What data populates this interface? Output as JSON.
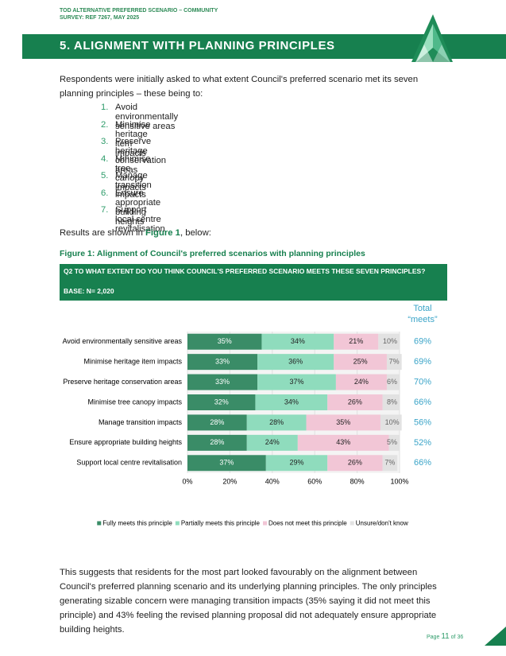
{
  "header": {
    "line1": "TOD ALTERNATIVE PREFERRED SCENARIO – COMMUNITY",
    "line2": "SURVEY: REF 7267, MAY 2025"
  },
  "section_title": "5. ALIGNMENT WITH PLANNING PRINCIPLES",
  "intro": "Respondents were initially asked to what extent Council's preferred scenario met its seven planning principles – these being to:",
  "principles": [
    {
      "number": "1.",
      "text": "Avoid environmentally sensitive areas"
    },
    {
      "number": "2.",
      "text": "Minimise heritage item impacts"
    },
    {
      "number": "3.",
      "text": "Preserve heritage conservation areas"
    },
    {
      "number": "4.",
      "text": "Minimise tree canopy impacts"
    },
    {
      "number": "5.",
      "text": "Manage transition impacts"
    },
    {
      "number": "6.",
      "text": "Ensure appropriate building heights"
    },
    {
      "number": "7.",
      "text": "Support local centre revitalisation"
    }
  ],
  "results": {
    "before": "Results are shown in ",
    "link": "Figure 1",
    "after": ", below:"
  },
  "figure_caption": "Figure 1: Alignment of Council's preferred scenarios with planning principles",
  "question_box": {
    "question": "Q2 TO WHAT EXTENT DO YOU THINK COUNCIL'S PREFERRED SCENARIO MEETS THESE SEVEN PRINCIPLES?",
    "base": "BASE: N= 2,020"
  },
  "chart_data": {
    "type": "stacked-bar-horizontal",
    "categories": [
      "Avoid environmentally sensitive areas",
      "Minimise heritage item impacts",
      "Preserve heritage conservation areas",
      "Minimise tree canopy impacts",
      "Manage transition impacts",
      "Ensure appropriate building heights",
      "Support local centre revitalisation"
    ],
    "series": [
      {
        "name": "Fully meets this principle",
        "color": "#3a8c67",
        "values": [
          35,
          33,
          33,
          32,
          28,
          28,
          37
        ],
        "value_labels": [
          "35%",
          "33%",
          "33%",
          "32%",
          "28%",
          "28%",
          "37%"
        ]
      },
      {
        "name": "Partially meets this principle",
        "color": "#8fdcbd",
        "values": [
          34,
          36,
          37,
          34,
          28,
          24,
          29
        ],
        "value_labels": [
          "34%",
          "36%",
          "37%",
          "34%",
          "28%",
          "24%",
          "29%"
        ]
      },
      {
        "name": "Does not meet this principle",
        "color": "#f2c6d6",
        "values": [
          21,
          25,
          24,
          26,
          35,
          43,
          26
        ],
        "value_labels": [
          "21%",
          "25%",
          "24%",
          "26%",
          "35%",
          "43%",
          "26%"
        ]
      },
      {
        "name": "Unsure/don't know",
        "color": "#e2e2e2",
        "values": [
          10,
          7,
          6,
          8,
          10,
          5,
          7
        ],
        "value_labels": [
          "10%",
          "7%",
          "6%",
          "8%",
          "10%",
          "5%",
          "7%"
        ]
      }
    ],
    "totals": {
      "header": [
        "Total",
        "“meets”"
      ],
      "color": "#3aa4c8",
      "values": [
        69,
        69,
        70,
        66,
        56,
        52,
        66
      ],
      "value_labels": [
        "69%",
        "69%",
        "70%",
        "66%",
        "56%",
        "52%",
        "66%"
      ]
    },
    "xlim": [
      0,
      100
    ],
    "xticks": [
      {
        "value": 0,
        "label": "0%"
      },
      {
        "value": 20,
        "label": "20%"
      },
      {
        "value": 40,
        "label": "40%"
      },
      {
        "value": 60,
        "label": "60%"
      },
      {
        "value": 80,
        "label": "80%"
      },
      {
        "value": 100,
        "label": "100%"
      }
    ],
    "grid": true,
    "legend": "bottom"
  },
  "conclusion": "This suggests that residents for the most part looked favourably on the alignment between Council's preferred planning scenario and its underlying planning principles. The only principles generating sizable concern were managing transition impacts (35% saying it did not meet this principle) and 43% feeling the revised planning proposal did not adequately ensure appropriate building heights.",
  "footer": {
    "page_label": "Page",
    "page_number": "11",
    "page_total": "of 36"
  }
}
